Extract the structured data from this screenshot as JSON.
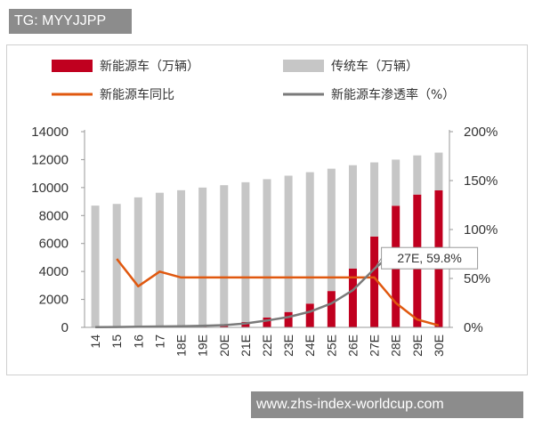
{
  "watermark_top": "TG: MYYJJPP",
  "watermark_bottom": "www.zhs-index-worldcup.com",
  "colors": {
    "nev_bar": "#c0001f",
    "traditional_bar": "#c6c6c6",
    "nev_yoy_line": "#e0580f",
    "nev_penetration_line": "#7a7a7a",
    "axis": "#999999"
  },
  "chart_data": {
    "type": "bar",
    "stacked": true,
    "categories": [
      "14",
      "15",
      "16",
      "17",
      "18E",
      "19E",
      "20E",
      "21E",
      "22E",
      "23E",
      "24E",
      "25E",
      "26E",
      "27E",
      "28E",
      "29E",
      "30E"
    ],
    "series": [
      {
        "name": "新能源车（万辆）",
        "type": "bar",
        "axis": "left",
        "values": [
          10,
          30,
          50,
          80,
          110,
          150,
          220,
          380,
          700,
          1100,
          1700,
          2600,
          4200,
          6500,
          8700,
          9500,
          9800
        ]
      },
      {
        "name": "传统车（万辆）",
        "type": "bar",
        "axis": "left",
        "values": [
          8700,
          8800,
          9250,
          9550,
          9700,
          9850,
          9950,
          10000,
          9900,
          9750,
          9400,
          8750,
          7400,
          5300,
          3300,
          2800,
          2700
        ]
      },
      {
        "name": "新能源车同比",
        "type": "line",
        "axis": "right",
        "values": [
          null,
          70,
          42,
          57,
          51,
          51,
          51,
          51,
          51,
          51,
          51,
          51,
          51,
          51,
          25,
          8,
          2
        ]
      },
      {
        "name": "新能源车渗透率（%）",
        "type": "line",
        "axis": "right",
        "values": [
          0.2,
          0.4,
          0.6,
          0.9,
          1.2,
          1.6,
          2.3,
          4.0,
          7.0,
          10.5,
          16.0,
          24.5,
          38.0,
          59.8,
          78.0,
          80.0,
          80.0
        ]
      }
    ],
    "left_axis": {
      "min": 0,
      "max": 14000,
      "ticks": [
        "0",
        "2000",
        "4000",
        "6000",
        "8000",
        "10000",
        "12000",
        "14000"
      ]
    },
    "right_axis": {
      "min": 0,
      "max": 200,
      "ticks": [
        "0%",
        "50%",
        "100%",
        "150%",
        "200%"
      ]
    },
    "annotation": {
      "label": "27E, 59.8%",
      "category": "27E",
      "value": 59.8
    },
    "legend": [
      {
        "label": "新能源车（万辆）",
        "symbol": "bar",
        "series": 0
      },
      {
        "label": "传统车（万辆）",
        "symbol": "bar",
        "series": 1
      },
      {
        "label": "新能源车同比",
        "symbol": "line",
        "series": 2
      },
      {
        "label": "新能源车渗透率（%）",
        "symbol": "line",
        "series": 3
      }
    ],
    "legend_position": "top",
    "grid": false
  }
}
